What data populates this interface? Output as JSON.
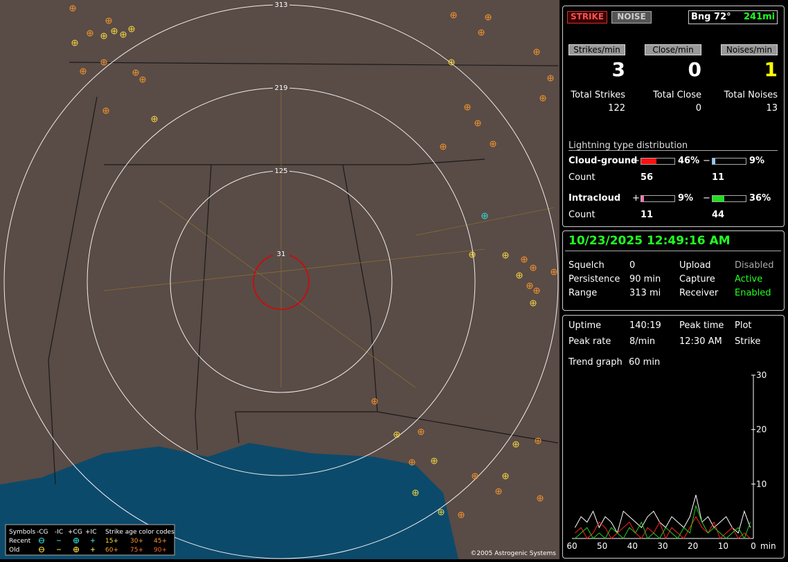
{
  "map": {
    "range_labels": [
      "313",
      "219",
      "125",
      "31"
    ],
    "legend": {
      "header": [
        "Symbols",
        "-CG",
        "-IC",
        "+CG",
        "+IC",
        "Strike age color codes"
      ],
      "recent": {
        "label": "Recent",
        "ages": [
          "15+",
          "30+",
          "45+"
        ]
      },
      "old": {
        "label": "Old",
        "ages": [
          "60+",
          "75+",
          "90+"
        ]
      }
    },
    "copyright": "©2005 Astrogenic Systems"
  },
  "status": {
    "strike_button": "STRIKE",
    "noise_button": "NOISE",
    "bearing": "Bng 72°",
    "distance": "241mi",
    "rates": [
      {
        "label": "Strikes/min",
        "value": 3
      },
      {
        "label": "Close/min",
        "value": 0
      },
      {
        "label": "Noises/min",
        "value": 1
      }
    ],
    "totals": [
      {
        "label": "Total Strikes",
        "value": 122
      },
      {
        "label": "Total Close",
        "value": 0
      },
      {
        "label": "Total Noises",
        "value": 13
      }
    ],
    "distribution": {
      "title": "Lightning type distribution",
      "count_label": "Count",
      "types": [
        {
          "name": "Cloud-ground",
          "plus": {
            "sign": "+",
            "value": 46,
            "label": "46%",
            "count": 56
          },
          "minus": {
            "sign": "−",
            "value": 9,
            "label": "9%",
            "count": 11
          }
        },
        {
          "name": "Intracloud",
          "plus": {
            "sign": "+",
            "value": 9,
            "label": "9%",
            "count": 11
          },
          "minus": {
            "sign": "−",
            "value": 36,
            "label": "36%",
            "count": 44
          }
        }
      ]
    }
  },
  "clock": "10/23/2025 12:49:16 AM",
  "settings": [
    [
      "Squelch",
      "0",
      "Upload",
      "Disabled"
    ],
    [
      "Persistence",
      "90 min",
      "Capture",
      "Active"
    ],
    [
      "Range",
      "313 mi",
      "Receiver",
      "Enabled"
    ]
  ],
  "stats": [
    [
      "Uptime",
      "140:19",
      "Peak time",
      "Plot"
    ],
    [
      "Peak rate",
      "8/min",
      "12:30 AM",
      "Strike"
    ]
  ],
  "trend": {
    "label": "Trend graph",
    "window": "60 min",
    "xlim": [
      60,
      0
    ],
    "xticks": [
      60,
      50,
      40,
      30,
      20,
      10,
      0
    ],
    "x_unit": "min",
    "ylim": [
      0,
      30
    ],
    "yticks": [
      10,
      20,
      30
    ],
    "series": [
      {
        "color": "#ffffff",
        "values": [
          2,
          4,
          3,
          5,
          2,
          4,
          3,
          1,
          5,
          4,
          3,
          2,
          4,
          5,
          3,
          2,
          4,
          3,
          2,
          4,
          8,
          3,
          4,
          2,
          3,
          4,
          2,
          1,
          5,
          2
        ]
      },
      {
        "color": "#ff2020",
        "values": [
          1,
          2,
          0,
          1,
          3,
          2,
          0,
          1,
          2,
          3,
          1,
          0,
          2,
          1,
          3,
          0,
          2,
          1,
          0,
          2,
          4,
          2,
          1,
          3,
          0,
          1,
          2,
          0,
          1,
          0
        ]
      },
      {
        "color": "#20d020",
        "values": [
          0,
          1,
          2,
          0,
          1,
          0,
          2,
          1,
          0,
          2,
          1,
          3,
          0,
          1,
          0,
          2,
          1,
          0,
          2,
          1,
          6,
          3,
          1,
          2,
          1,
          0,
          1,
          2,
          0,
          3
        ]
      }
    ]
  }
}
